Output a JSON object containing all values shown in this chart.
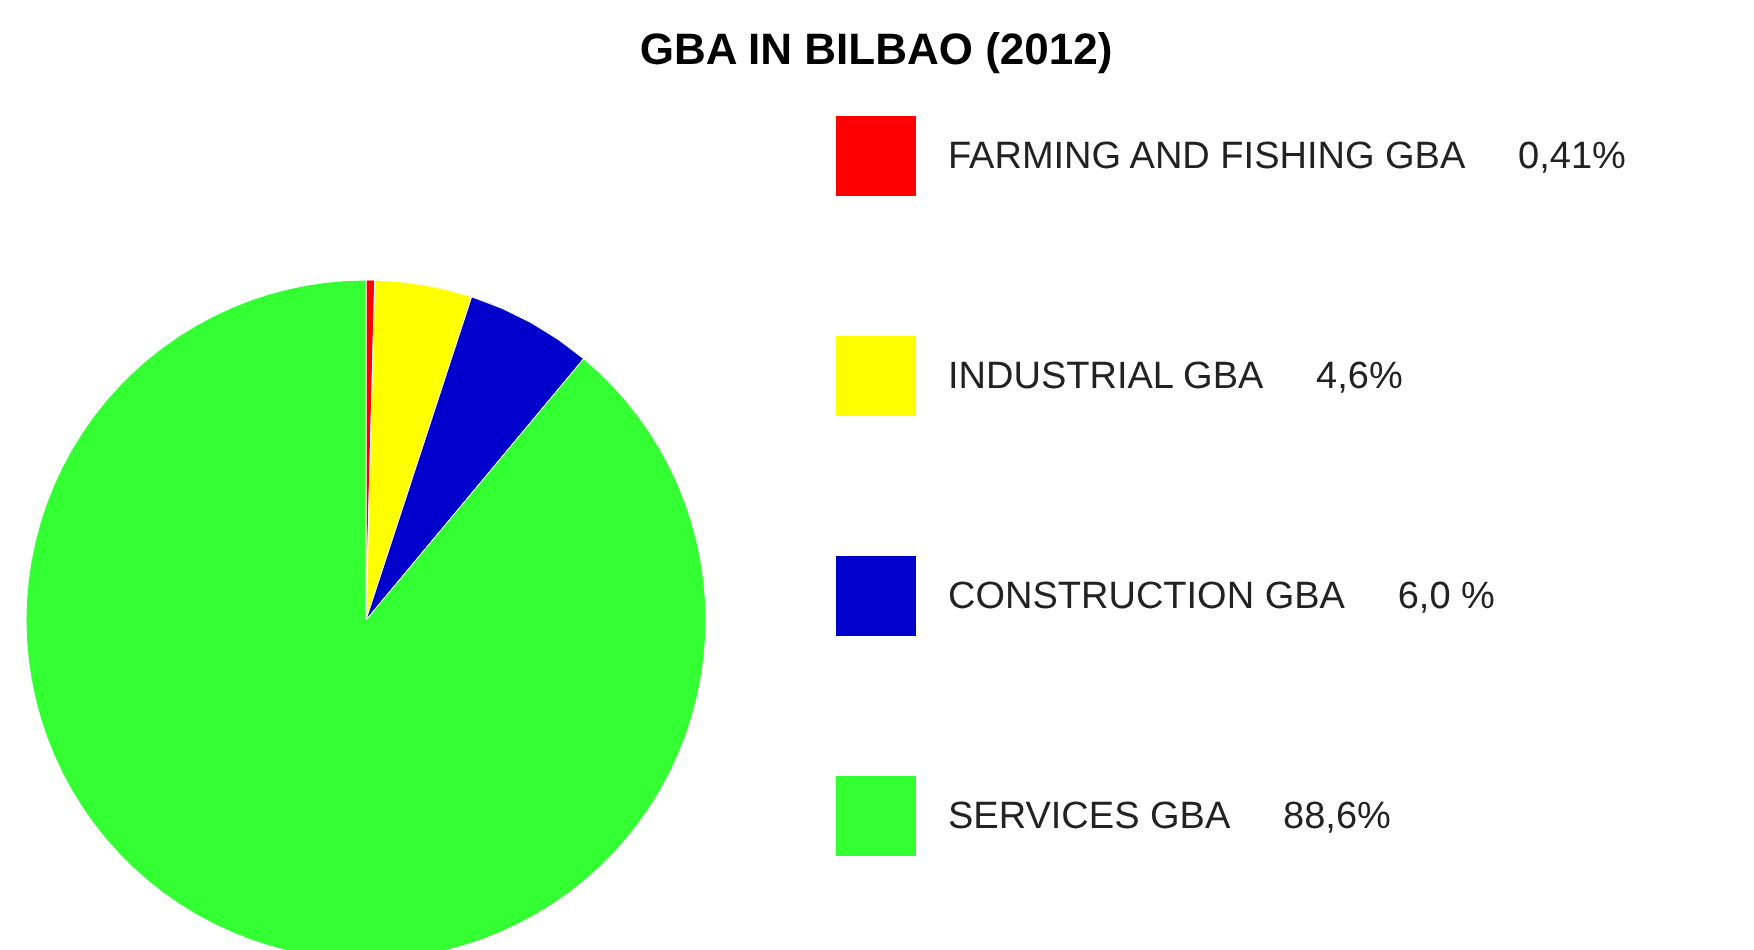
{
  "chart_data": {
    "type": "pie",
    "title": "GBA  IN BILBAO  (2012)",
    "categories": [
      "FARMING AND FISHING  GBA",
      "INDUSTRIAL  GBA",
      "CONSTRUCTION GBA",
      "SERVICES GBA"
    ],
    "values": [
      0.41,
      4.6,
      6.0,
      88.6
    ],
    "value_labels": [
      "0,41%",
      "4,6%",
      "6,0 %",
      "88,6%"
    ],
    "colors": [
      "#ff0000",
      "#ffff00",
      "#0000cc",
      "#33ff33"
    ],
    "legend": "right"
  }
}
